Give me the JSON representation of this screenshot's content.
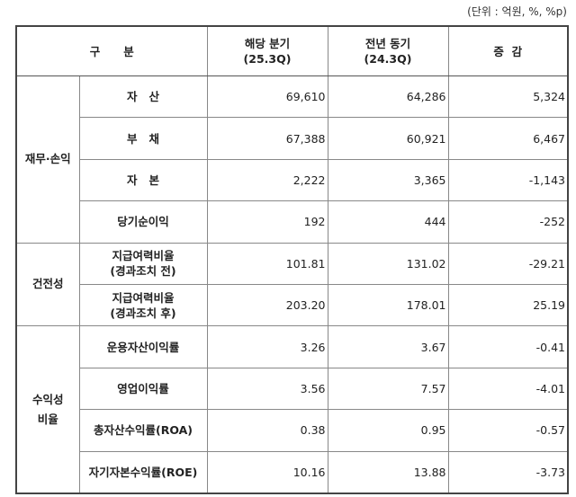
{
  "unit_label": "(단위 : 억원, %, %p)",
  "header": {
    "category": "구      분",
    "current": "해당 분기",
    "current_period": "(25.3Q)",
    "previous": "전년 동기",
    "previous_period": "(24.3Q)",
    "change": "증  감"
  },
  "groups": [
    {
      "name": "재무·손익",
      "rows": [
        {
          "label": "자   산",
          "current": "69,610",
          "previous": "64,286",
          "change": "5,324"
        },
        {
          "label": "부   채",
          "current": "67,388",
          "previous": "60,921",
          "change": "6,467"
        },
        {
          "label": "자   본",
          "current": "2,222",
          "previous": "3,365",
          "change": "-1,143"
        },
        {
          "label": "당기순이익",
          "current": "192",
          "previous": "444",
          "change": "-252"
        }
      ]
    },
    {
      "name": "건전성",
      "rows": [
        {
          "label": "지급여력비율",
          "sub": "(경과조치 전)",
          "current": "101.81",
          "previous": "131.02",
          "change": "-29.21"
        },
        {
          "label": "지급여력비율",
          "sub": "(경과조치 후)",
          "current": "203.20",
          "previous": "178.01",
          "change": "25.19"
        }
      ]
    },
    {
      "name": "수익성",
      "name2": "비율",
      "rows": [
        {
          "label": "운용자산이익률",
          "current": "3.26",
          "previous": "3.67",
          "change": "-0.41"
        },
        {
          "label": "영업이익률",
          "current": "3.56",
          "previous": "7.57",
          "change": "-4.01"
        },
        {
          "label": "총자산수익률(ROA)",
          "current": "0.38",
          "previous": "0.95",
          "change": "-0.57"
        },
        {
          "label": "자기자본수익률(ROE)",
          "current": "10.16",
          "previous": "13.88",
          "change": "-3.73"
        }
      ]
    }
  ]
}
